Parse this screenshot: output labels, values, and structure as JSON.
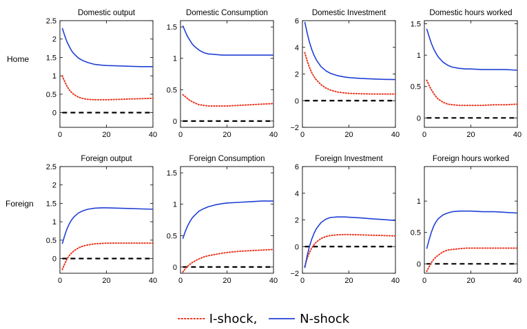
{
  "row_labels": [
    "Home",
    "Foreign"
  ],
  "legend": {
    "i_label": "I-shock,",
    "n_label": "N-shock"
  },
  "colors": {
    "i_shock": "#e8341c",
    "n_shock": "#1f3fd4",
    "baseline": "#000000"
  },
  "chart_data": [
    {
      "type": "line",
      "title": "Domestic output",
      "xlim": [
        0,
        40
      ],
      "ylim": [
        -0.4,
        2.5
      ],
      "xticks": [
        0,
        20,
        40
      ],
      "yticks": [
        0,
        0.5,
        1,
        1.5,
        2,
        2.5
      ],
      "ytick_labels": [
        "0",
        "0.5",
        "1",
        "1.5",
        "2",
        "2.5"
      ],
      "zero_line": true,
      "series": [
        {
          "name": "I-shock",
          "style": "dotted",
          "x": [
            1,
            2,
            3,
            4,
            5,
            6,
            8,
            10,
            12,
            15,
            18,
            20,
            25,
            30,
            35,
            40
          ],
          "y": [
            1.0,
            0.85,
            0.72,
            0.62,
            0.55,
            0.49,
            0.42,
            0.38,
            0.36,
            0.35,
            0.35,
            0.35,
            0.36,
            0.37,
            0.38,
            0.39
          ]
        },
        {
          "name": "N-shock",
          "style": "solid",
          "x": [
            1,
            2,
            3,
            4,
            5,
            6,
            8,
            10,
            12,
            15,
            18,
            20,
            25,
            30,
            35,
            40
          ],
          "y": [
            2.3,
            2.1,
            1.93,
            1.8,
            1.68,
            1.6,
            1.48,
            1.41,
            1.36,
            1.31,
            1.29,
            1.28,
            1.27,
            1.26,
            1.25,
            1.25
          ]
        }
      ]
    },
    {
      "type": "line",
      "title": "Domestic Consumption",
      "xlim": [
        0,
        40
      ],
      "ylim": [
        -0.1,
        1.6
      ],
      "xticks": [
        0,
        20,
        40
      ],
      "yticks": [
        0,
        0.5,
        1,
        1.5
      ],
      "ytick_labels": [
        "0",
        "0.5",
        "1",
        "1.5"
      ],
      "zero_line": true,
      "series": [
        {
          "name": "I-shock",
          "style": "dotted",
          "x": [
            1,
            2,
            3,
            4,
            5,
            6,
            8,
            10,
            12,
            15,
            18,
            20,
            25,
            30,
            35,
            40
          ],
          "y": [
            0.42,
            0.39,
            0.36,
            0.33,
            0.31,
            0.29,
            0.26,
            0.25,
            0.24,
            0.24,
            0.24,
            0.24,
            0.25,
            0.26,
            0.27,
            0.28
          ]
        },
        {
          "name": "N-shock",
          "style": "solid",
          "x": [
            1,
            2,
            3,
            4,
            5,
            6,
            8,
            10,
            12,
            15,
            18,
            20,
            25,
            30,
            35,
            40
          ],
          "y": [
            1.52,
            1.43,
            1.35,
            1.29,
            1.23,
            1.19,
            1.13,
            1.09,
            1.07,
            1.06,
            1.05,
            1.05,
            1.05,
            1.05,
            1.05,
            1.05
          ]
        }
      ]
    },
    {
      "type": "line",
      "title": "Domestic Investment",
      "xlim": [
        0,
        40
      ],
      "ylim": [
        -2,
        6
      ],
      "xticks": [
        0,
        20,
        40
      ],
      "yticks": [
        -2,
        0,
        2,
        4,
        6
      ],
      "ytick_labels": [
        "−2",
        "0",
        "2",
        "4",
        "6"
      ],
      "zero_line": true,
      "series": [
        {
          "name": "I-shock",
          "style": "dotted",
          "x": [
            1,
            2,
            3,
            4,
            5,
            6,
            8,
            10,
            12,
            15,
            18,
            20,
            25,
            30,
            35,
            40
          ],
          "y": [
            3.6,
            3.0,
            2.5,
            2.1,
            1.8,
            1.55,
            1.2,
            0.95,
            0.8,
            0.65,
            0.58,
            0.55,
            0.52,
            0.5,
            0.5,
            0.5
          ]
        },
        {
          "name": "N-shock",
          "style": "solid",
          "x": [
            1,
            2,
            3,
            4,
            5,
            6,
            8,
            10,
            12,
            15,
            18,
            20,
            25,
            30,
            35,
            40
          ],
          "y": [
            5.9,
            5.1,
            4.4,
            3.85,
            3.4,
            3.05,
            2.55,
            2.25,
            2.05,
            1.88,
            1.78,
            1.73,
            1.67,
            1.63,
            1.6,
            1.58
          ]
        }
      ]
    },
    {
      "type": "line",
      "title": "Domestic hours worked",
      "xlim": [
        0,
        40
      ],
      "ylim": [
        -0.15,
        1.55
      ],
      "xticks": [
        0,
        20,
        40
      ],
      "yticks": [
        0,
        0.5,
        1,
        1.5
      ],
      "ytick_labels": [
        "0",
        "0.5",
        "1",
        "1.5"
      ],
      "zero_line": true,
      "series": [
        {
          "name": "I-shock",
          "style": "dotted",
          "x": [
            1,
            2,
            3,
            4,
            5,
            6,
            8,
            10,
            12,
            15,
            18,
            20,
            25,
            30,
            35,
            40
          ],
          "y": [
            0.6,
            0.52,
            0.45,
            0.39,
            0.34,
            0.3,
            0.25,
            0.22,
            0.21,
            0.2,
            0.2,
            0.2,
            0.2,
            0.21,
            0.21,
            0.22
          ]
        },
        {
          "name": "N-shock",
          "style": "solid",
          "x": [
            1,
            2,
            3,
            4,
            5,
            6,
            8,
            10,
            12,
            15,
            18,
            20,
            25,
            30,
            35,
            40
          ],
          "y": [
            1.42,
            1.3,
            1.19,
            1.1,
            1.03,
            0.97,
            0.89,
            0.84,
            0.81,
            0.79,
            0.78,
            0.78,
            0.77,
            0.77,
            0.77,
            0.76
          ]
        }
      ]
    },
    {
      "type": "line",
      "title": "Foreign output",
      "xlim": [
        0,
        40
      ],
      "ylim": [
        -0.4,
        2.5
      ],
      "xticks": [
        0,
        20,
        40
      ],
      "yticks": [
        0,
        0.5,
        1,
        1.5,
        2,
        2.5
      ],
      "ytick_labels": [
        "0",
        "0.5",
        "1",
        "1.5",
        "2",
        "2.5"
      ],
      "zero_line": true,
      "series": [
        {
          "name": "I-shock",
          "style": "dotted",
          "x": [
            1,
            2,
            3,
            4,
            5,
            6,
            8,
            10,
            12,
            15,
            18,
            20,
            25,
            30,
            35,
            40
          ],
          "y": [
            -0.3,
            -0.15,
            -0.02,
            0.08,
            0.15,
            0.21,
            0.29,
            0.34,
            0.37,
            0.4,
            0.41,
            0.42,
            0.42,
            0.42,
            0.42,
            0.42
          ]
        },
        {
          "name": "N-shock",
          "style": "solid",
          "x": [
            1,
            2,
            3,
            4,
            5,
            6,
            8,
            10,
            12,
            15,
            18,
            20,
            25,
            30,
            35,
            40
          ],
          "y": [
            0.4,
            0.62,
            0.8,
            0.94,
            1.05,
            1.13,
            1.24,
            1.3,
            1.34,
            1.37,
            1.38,
            1.38,
            1.37,
            1.36,
            1.35,
            1.34
          ]
        }
      ]
    },
    {
      "type": "line",
      "title": "Foreign Consumption",
      "xlim": [
        0,
        40
      ],
      "ylim": [
        -0.1,
        1.6
      ],
      "xticks": [
        0,
        20,
        40
      ],
      "yticks": [
        0,
        0.5,
        1,
        1.5
      ],
      "ytick_labels": [
        "0",
        "0.5",
        "1",
        "1.5"
      ],
      "zero_line": true,
      "series": [
        {
          "name": "I-shock",
          "style": "dotted",
          "x": [
            1,
            2,
            3,
            4,
            5,
            6,
            8,
            10,
            12,
            15,
            18,
            20,
            25,
            30,
            35,
            40
          ],
          "y": [
            -0.08,
            -0.03,
            0.01,
            0.04,
            0.07,
            0.09,
            0.13,
            0.16,
            0.18,
            0.2,
            0.22,
            0.23,
            0.25,
            0.26,
            0.27,
            0.28
          ]
        },
        {
          "name": "N-shock",
          "style": "solid",
          "x": [
            1,
            2,
            3,
            4,
            5,
            6,
            8,
            10,
            12,
            15,
            18,
            20,
            25,
            30,
            35,
            40
          ],
          "y": [
            0.45,
            0.56,
            0.65,
            0.72,
            0.78,
            0.82,
            0.89,
            0.93,
            0.96,
            0.99,
            1.01,
            1.02,
            1.03,
            1.04,
            1.05,
            1.05
          ]
        }
      ]
    },
    {
      "type": "line",
      "title": "Foreign Investment",
      "xlim": [
        0,
        40
      ],
      "ylim": [
        -2,
        6
      ],
      "xticks": [
        0,
        20,
        40
      ],
      "yticks": [
        -2,
        0,
        2,
        4,
        6
      ],
      "ytick_labels": [
        "−2",
        "0",
        "2",
        "4",
        "6"
      ],
      "zero_line": true,
      "series": [
        {
          "name": "I-shock",
          "style": "dotted",
          "x": [
            1,
            2,
            3,
            4,
            5,
            6,
            8,
            10,
            12,
            15,
            18,
            20,
            25,
            30,
            35,
            40
          ],
          "y": [
            -1.5,
            -0.9,
            -0.45,
            -0.1,
            0.15,
            0.35,
            0.6,
            0.75,
            0.83,
            0.88,
            0.9,
            0.9,
            0.88,
            0.85,
            0.83,
            0.8
          ]
        },
        {
          "name": "N-shock",
          "style": "solid",
          "x": [
            1,
            2,
            3,
            4,
            5,
            6,
            8,
            10,
            12,
            15,
            18,
            20,
            25,
            30,
            35,
            40
          ],
          "y": [
            -1.6,
            -0.7,
            0.0,
            0.55,
            1.0,
            1.35,
            1.8,
            2.05,
            2.18,
            2.22,
            2.22,
            2.2,
            2.15,
            2.08,
            2.02,
            1.96
          ]
        }
      ]
    },
    {
      "type": "line",
      "title": "Foreign hours worked",
      "xlim": [
        0,
        40
      ],
      "ylim": [
        -0.15,
        1.55
      ],
      "xticks": [
        0,
        20,
        40
      ],
      "yticks": [
        0,
        0.5,
        1
      ],
      "ytick_labels": [
        "0",
        "0.5",
        "1"
      ],
      "zero_line": true,
      "series": [
        {
          "name": "I-shock",
          "style": "dotted",
          "x": [
            1,
            2,
            3,
            4,
            5,
            6,
            8,
            10,
            12,
            15,
            18,
            20,
            25,
            30,
            35,
            40
          ],
          "y": [
            -0.12,
            -0.05,
            0.02,
            0.07,
            0.11,
            0.14,
            0.19,
            0.22,
            0.23,
            0.24,
            0.25,
            0.25,
            0.25,
            0.25,
            0.25,
            0.25
          ]
        },
        {
          "name": "N-shock",
          "style": "solid",
          "x": [
            1,
            2,
            3,
            4,
            5,
            6,
            8,
            10,
            12,
            15,
            18,
            20,
            25,
            30,
            35,
            40
          ],
          "y": [
            0.24,
            0.38,
            0.5,
            0.6,
            0.67,
            0.72,
            0.78,
            0.81,
            0.83,
            0.84,
            0.84,
            0.84,
            0.83,
            0.83,
            0.82,
            0.81
          ]
        }
      ]
    }
  ]
}
